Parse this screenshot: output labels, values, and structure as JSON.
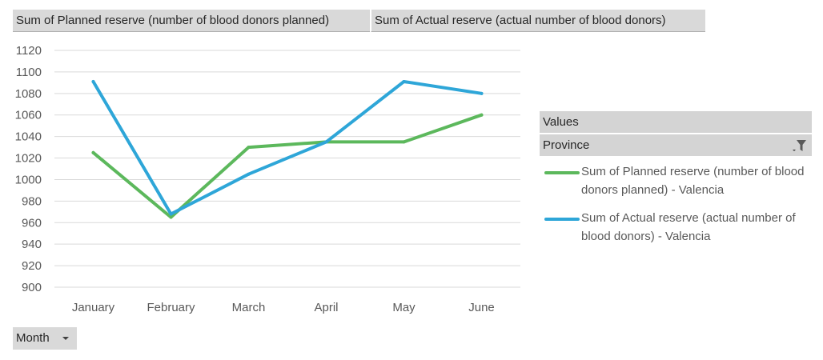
{
  "field_buttons": {
    "planned": "Sum of Planned reserve (number of blood donors planned)",
    "actual": "Sum of Actual reserve (actual number of blood donors)",
    "month": "Month"
  },
  "legend": {
    "values_header": "Values",
    "province_header": "Province",
    "icon": "filter-icon",
    "placement": "right"
  },
  "colors": {
    "planned": "#5cb85c",
    "actual": "#2ea6d8",
    "gridline": "#d9d9d9",
    "field_button_bg": "#d9d9d9"
  },
  "chart_data": {
    "type": "line",
    "categories": [
      "January",
      "February",
      "March",
      "April",
      "May",
      "June"
    ],
    "ylim": [
      900,
      1120
    ],
    "y_ticks": [
      1120,
      1100,
      1080,
      1060,
      1040,
      1020,
      1000,
      980,
      960,
      940,
      920,
      900
    ],
    "grid": true,
    "series": [
      {
        "name": "Sum of Planned reserve (number of blood donors planned) - Valencia",
        "values": [
          1025,
          965,
          1030,
          1035,
          1035,
          1060
        ]
      },
      {
        "name": "Sum of Actual reserve (actual number of blood donors) - Valencia",
        "values": [
          1091,
          968,
          1005,
          1035,
          1091,
          1080
        ]
      }
    ]
  }
}
